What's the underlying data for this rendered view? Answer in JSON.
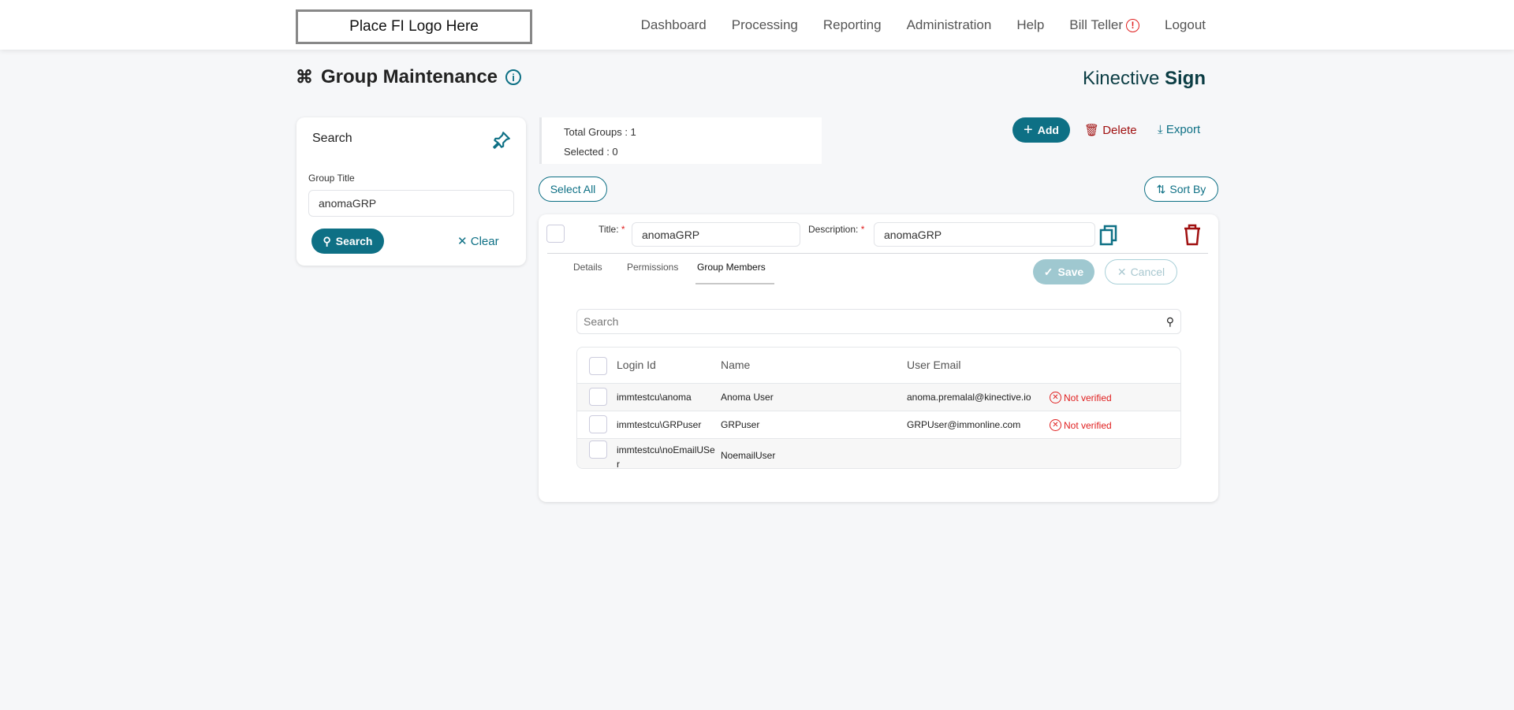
{
  "header": {
    "logo": "Place FI Logo Here",
    "nav": [
      "Dashboard",
      "Processing",
      "Reporting",
      "Administration",
      "Help"
    ],
    "user": "Bill Teller",
    "logout": "Logout"
  },
  "page": {
    "title": "Group Maintenance",
    "brand_light": "Kinective",
    "brand_bold": "Sign"
  },
  "search": {
    "heading": "Search",
    "field_label": "Group Title",
    "field_value": "anomaGRP",
    "search_btn": "Search",
    "clear_btn": "Clear"
  },
  "stats": {
    "total": "Total Groups : 1",
    "selected": "Selected : 0"
  },
  "toolbar": {
    "add": "Add",
    "delete": "Delete",
    "export": "Export",
    "select_all": "Select All",
    "sort_by": "Sort By"
  },
  "group": {
    "title_label": "Title:",
    "title_value": "anomaGRP",
    "desc_label": "Description:",
    "desc_value": "anomaGRP",
    "tabs": [
      "Details",
      "Permissions",
      "Group Members"
    ],
    "active_tab": "Group Members",
    "save": "Save",
    "cancel": "Cancel"
  },
  "members": {
    "search_placeholder": "Search",
    "columns": [
      "Login Id",
      "Name",
      "User Email"
    ],
    "rows": [
      {
        "login": "immtestcu\\anoma",
        "name": "Anoma User",
        "email": "anoma.premalal@kinective.io",
        "status": "Not verified"
      },
      {
        "login": "immtestcu\\GRPuser",
        "name": "GRPuser",
        "email": "GRPUser@immonline.com",
        "status": "Not verified"
      },
      {
        "login": "immtestcu\\noEmailUSer",
        "name": "NoemailUser",
        "email": "",
        "status": ""
      }
    ]
  },
  "colors": {
    "accent": "#0e7085",
    "danger": "#a01010",
    "error": "#e02020"
  }
}
